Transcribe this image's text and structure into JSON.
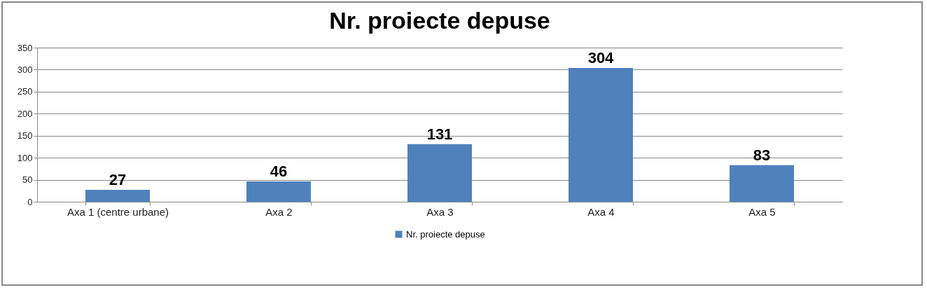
{
  "chart_data": {
    "type": "bar",
    "title": "Nr. proiecte depuse",
    "categories": [
      "Axa 1 (centre urbane)",
      "Axa 2",
      "Axa 3",
      "Axa 4",
      "Axa 5"
    ],
    "series": [
      {
        "name": "Nr. proiecte depuse",
        "color": "#4f81bd",
        "values": [
          27,
          46,
          131,
          304,
          83
        ]
      }
    ],
    "ylim": [
      0,
      350
    ],
    "yticks": [
      0,
      50,
      100,
      150,
      200,
      250,
      300,
      350
    ],
    "grid": "y",
    "legend": "bottom",
    "data_labels": true
  }
}
